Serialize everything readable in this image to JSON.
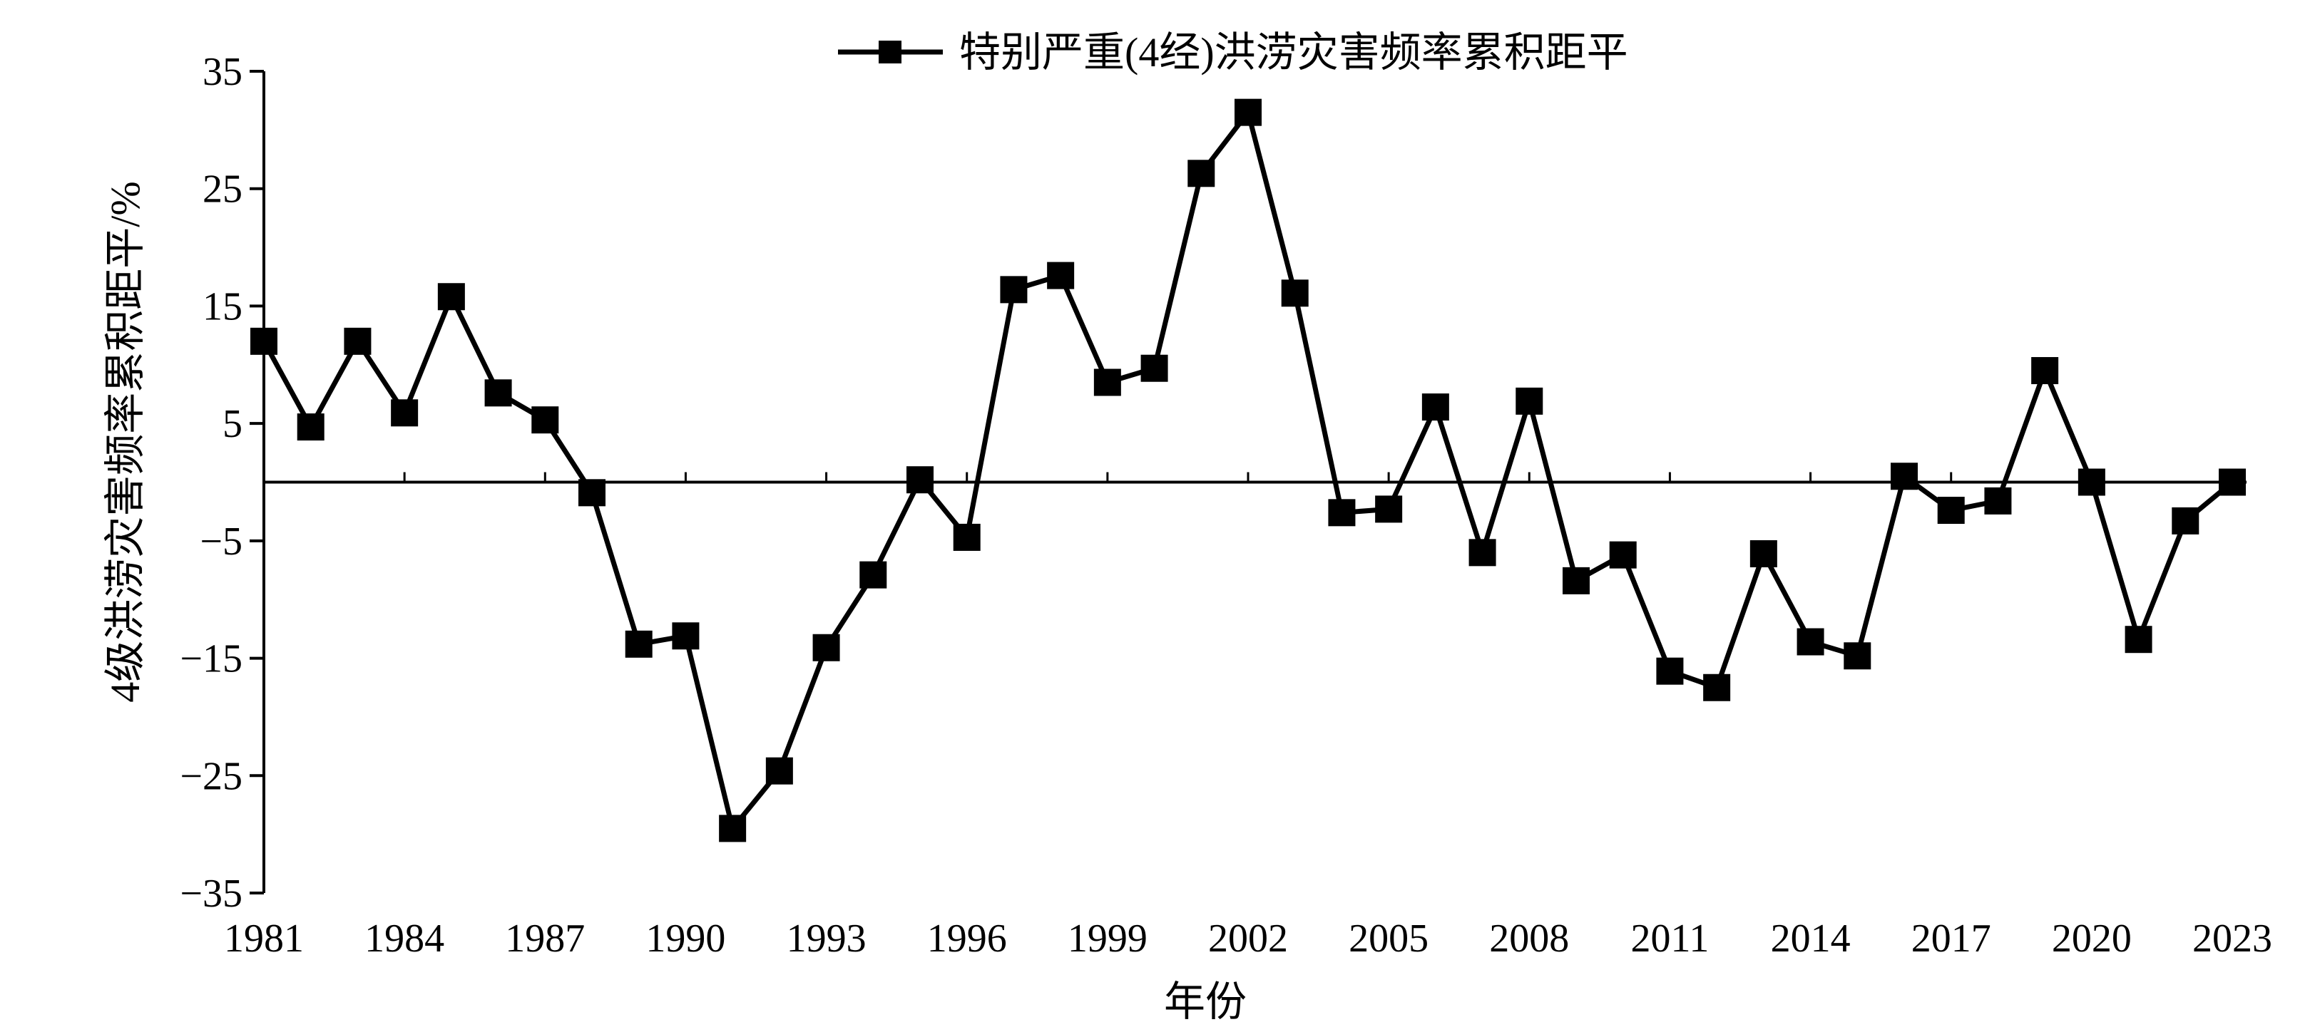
{
  "chart_data": {
    "type": "line",
    "title": "",
    "xlabel": "年份",
    "ylabel": "4级洪涝灾害频率累积距平/%",
    "ylim": [
      -35,
      35
    ],
    "yticks": [
      -35,
      -25,
      -15,
      -5,
      5,
      15,
      25,
      35
    ],
    "ytick_labels": [
      "−35",
      "−25",
      "−15",
      "−5",
      "5",
      "15",
      "25",
      "35"
    ],
    "xlim": [
      1981,
      2023
    ],
    "xticks": [
      1981,
      1984,
      1987,
      1990,
      1993,
      1996,
      1999,
      2002,
      2005,
      2008,
      2011,
      2014,
      2017,
      2020,
      2023
    ],
    "xtick_labels": [
      "1981",
      "1984",
      "1987",
      "1990",
      "1993",
      "1996",
      "1999",
      "2002",
      "2005",
      "2008",
      "2011",
      "2014",
      "2017",
      "2020",
      "2023"
    ],
    "grid": false,
    "reference_line": 0,
    "legend_position": "top-center",
    "series": [
      {
        "name": "特别严重(4经)洪涝灾害频率累积距平",
        "marker": "square",
        "color": "#000000",
        "x": [
          1981,
          1982,
          1983,
          1984,
          1985,
          1986,
          1987,
          1988,
          1989,
          1990,
          1991,
          1992,
          1993,
          1994,
          1995,
          1996,
          1997,
          1998,
          1999,
          2000,
          2001,
          2002,
          2003,
          2004,
          2005,
          2006,
          2007,
          2008,
          2009,
          2010,
          2011,
          2012,
          2013,
          2014,
          2015,
          2016,
          2017,
          2018,
          2019,
          2020,
          2021,
          2022,
          2023
        ],
        "values": [
          12.0,
          4.7,
          12.0,
          5.9,
          15.8,
          7.6,
          5.3,
          -0.9,
          -13.8,
          -13.1,
          -29.5,
          -24.6,
          -14.1,
          -7.9,
          0.2,
          -4.7,
          16.4,
          17.6,
          8.5,
          9.7,
          26.3,
          31.5,
          16.1,
          -2.6,
          -2.3,
          6.4,
          -6.0,
          6.9,
          -8.4,
          -6.2,
          -16.1,
          -17.5,
          -6.1,
          -13.6,
          -14.8,
          0.5,
          -2.4,
          -1.6,
          9.5,
          0.0,
          -13.4,
          -3.3,
          0.0
        ]
      }
    ]
  }
}
